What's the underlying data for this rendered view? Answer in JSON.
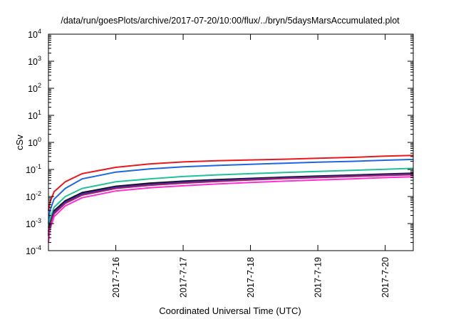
{
  "chart_data": {
    "type": "line",
    "title": "/data/run/goesPlots/archive/2017-07-20/10:00/flux/../bryn/5daysMarsAccumulated.plot",
    "xlabel": "Coordinated Universal Time (UTC)",
    "ylabel": "cSv",
    "yscale": "log",
    "ylim": [
      0.0001,
      10000
    ],
    "xlim": [
      "2017-07-15T00:00",
      "2017-07-20T10:00"
    ],
    "grid": false,
    "legend": "none",
    "x_ticks": [
      "2017-7-16",
      "2017-7-17",
      "2017-7-18",
      "2017-7-19",
      "2017-7-20"
    ],
    "y_ticks": [
      {
        "base": "10",
        "exp": "-4"
      },
      {
        "base": "10",
        "exp": "-3"
      },
      {
        "base": "10",
        "exp": "-2"
      },
      {
        "base": "10",
        "exp": "-1"
      },
      {
        "base": "10",
        "exp": "0"
      },
      {
        "base": "10",
        "exp": "1"
      },
      {
        "base": "10",
        "exp": "2"
      },
      {
        "base": "10",
        "exp": "3"
      },
      {
        "base": "10",
        "exp": "4"
      }
    ],
    "x": [
      "2017-07-15T00:00",
      "2017-07-15T00:30",
      "2017-07-15T02:00",
      "2017-07-15T06:00",
      "2017-07-15T12:00",
      "2017-07-16T00:00",
      "2017-07-16T12:00",
      "2017-07-17T00:00",
      "2017-07-17T12:00",
      "2017-07-18T00:00",
      "2017-07-18T12:00",
      "2017-07-19T00:00",
      "2017-07-19T12:00",
      "2017-07-20T00:00",
      "2017-07-20T10:00"
    ],
    "series": [
      {
        "color": "#e8191e",
        "values": [
          0.003,
          0.006,
          0.015,
          0.035,
          0.07,
          0.12,
          0.16,
          0.19,
          0.21,
          0.225,
          0.24,
          0.26,
          0.28,
          0.31,
          0.33
        ]
      },
      {
        "color": "#1f66e0",
        "values": [
          0.001,
          0.003,
          0.008,
          0.02,
          0.045,
          0.08,
          0.105,
          0.125,
          0.14,
          0.155,
          0.17,
          0.185,
          0.2,
          0.22,
          0.235
        ]
      },
      {
        "color": "#21c19a",
        "values": [
          0.0007,
          0.0015,
          0.004,
          0.01,
          0.02,
          0.035,
          0.045,
          0.055,
          0.063,
          0.07,
          0.077,
          0.085,
          0.093,
          0.102,
          0.11
        ]
      },
      {
        "color": "#111111",
        "values": [
          0.0005,
          0.001,
          0.003,
          0.007,
          0.014,
          0.024,
          0.031,
          0.037,
          0.042,
          0.047,
          0.052,
          0.057,
          0.062,
          0.068,
          0.073
        ]
      },
      {
        "color": "#3b27a8",
        "values": [
          0.0004,
          0.0009,
          0.0026,
          0.0062,
          0.0125,
          0.022,
          0.028,
          0.034,
          0.039,
          0.044,
          0.049,
          0.054,
          0.059,
          0.064,
          0.069
        ]
      },
      {
        "color": "#a0206e",
        "values": [
          0.00035,
          0.0008,
          0.0023,
          0.0056,
          0.0113,
          0.02,
          0.026,
          0.031,
          0.036,
          0.041,
          0.046,
          0.05,
          0.055,
          0.06,
          0.064
        ]
      },
      {
        "color": "#ff2fd0",
        "values": [
          0.0002,
          0.0006,
          0.0018,
          0.0045,
          0.009,
          0.016,
          0.021,
          0.025,
          0.029,
          0.033,
          0.037,
          0.041,
          0.045,
          0.05,
          0.054
        ]
      }
    ]
  }
}
